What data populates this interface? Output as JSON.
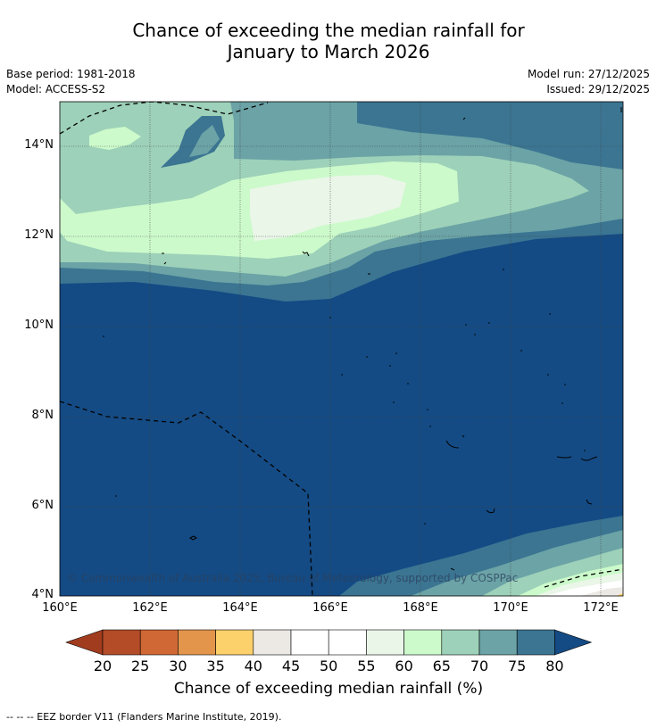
{
  "title": {
    "line1": "Chance of exceeding the median rainfall for",
    "line2": "January to March 2026"
  },
  "meta": {
    "base_period": "Base period: 1981-2018",
    "model": "Model: ACCESS-S2",
    "model_run": "Model run: 27/12/2025",
    "issued": "Issued: 29/12/2025"
  },
  "map": {
    "copyright": "© Commonwealth of Australia 2025, Bureau of Meteorology, supported by COSPPac",
    "lat_ticks": [
      "14°N",
      "12°N",
      "10°N",
      "8°N",
      "6°N",
      "4°N"
    ],
    "lon_ticks": [
      "160°E",
      "162°E",
      "164°E",
      "166°E",
      "168°E",
      "170°E",
      "172°E"
    ],
    "lat_range": [
      4,
      15
    ],
    "lon_range": [
      160,
      172.5
    ],
    "colors": {
      "p80": "#144b84",
      "p75": "#3b7592",
      "p70": "#6ba3a6",
      "p65": "#9dd1b9",
      "p60": "#ccfacb",
      "p55": "#eaf6e8",
      "p45": "#ffffff",
      "p40": "#ece8e4",
      "p35": "#fcd06b"
    }
  },
  "colorbar": {
    "title": "Chance of exceeding median rainfall (%)",
    "labels": [
      "20",
      "25",
      "30",
      "35",
      "40",
      "45",
      "50",
      "55",
      "60",
      "65",
      "70",
      "75",
      "80"
    ],
    "colors": [
      "#a23c1f",
      "#b44c27",
      "#cf6835",
      "#e3954b",
      "#fcd06b",
      "#ece8e4",
      "#ffffff",
      "#ffffff",
      "#eaf6e8",
      "#ccfacb",
      "#9dd1b9",
      "#6ba3a6",
      "#3b7592",
      "#144b84"
    ]
  },
  "legend": {
    "eez": "--  --  -- EEZ border V11 (Flanders Marine Institute, 2019)."
  }
}
